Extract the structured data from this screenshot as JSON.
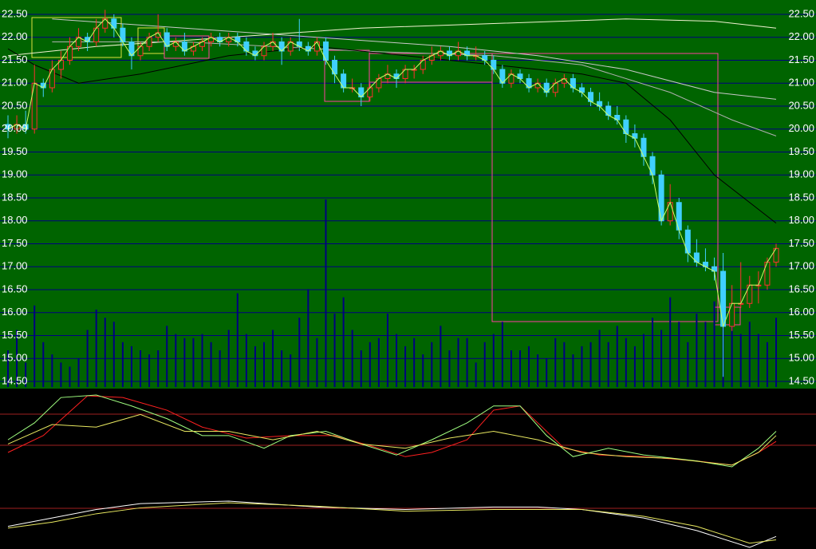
{
  "chart_data": {
    "type": "candlestick",
    "ylim": [
      14.5,
      22.5
    ],
    "yticks": [
      {
        "value": 22.5,
        "label": "22.50"
      },
      {
        "value": 22,
        "label": "22.00"
      },
      {
        "value": 21.5,
        "label": "21.50"
      },
      {
        "value": 21,
        "label": "21.00"
      },
      {
        "value": 20.5,
        "label": "20.50"
      },
      {
        "value": 20,
        "label": "20.00"
      },
      {
        "value": 19.5,
        "label": "19.50"
      },
      {
        "value": 19,
        "label": "19.00"
      },
      {
        "value": 18.5,
        "label": "18.50"
      },
      {
        "value": 18,
        "label": "18.00"
      },
      {
        "value": 17.5,
        "label": "17.50"
      },
      {
        "value": 17,
        "label": "17.00"
      },
      {
        "value": 16.5,
        "label": "16.50"
      },
      {
        "value": 16,
        "label": "16.00"
      },
      {
        "value": 15.5,
        "label": "15.50"
      },
      {
        "value": 15,
        "label": "15.00"
      },
      {
        "value": 14.5,
        "label": "14.50"
      }
    ],
    "grid": true,
    "up_color": "#ff3030",
    "down_color": "#40d0ff",
    "close_line_color": "#ccff66",
    "volume_color": "#000080",
    "candles": [
      [
        20.1,
        20.3,
        19.8,
        20.0
      ],
      [
        20.0,
        20.3,
        19.9,
        20.1
      ],
      [
        20.1,
        20.4,
        19.9,
        20.0
      ],
      [
        20.0,
        21.4,
        19.9,
        21.0
      ],
      [
        21.0,
        21.1,
        20.7,
        20.9
      ],
      [
        20.9,
        21.5,
        20.8,
        21.3
      ],
      [
        21.3,
        21.7,
        21.1,
        21.5
      ],
      [
        21.5,
        22.0,
        21.4,
        21.8
      ],
      [
        21.8,
        22.2,
        21.7,
        22.0
      ],
      [
        22.0,
        22.1,
        21.7,
        21.9
      ],
      [
        21.9,
        22.4,
        21.8,
        22.2
      ],
      [
        22.2,
        22.6,
        22.1,
        22.4
      ],
      [
        22.4,
        22.5,
        22.0,
        22.2
      ],
      [
        22.2,
        22.3,
        21.8,
        21.9
      ],
      [
        21.9,
        22.0,
        21.3,
        21.6
      ],
      [
        21.6,
        21.9,
        21.5,
        21.8
      ],
      [
        21.8,
        22.1,
        21.7,
        22.0
      ],
      [
        22.0,
        22.5,
        21.9,
        22.1
      ],
      [
        22.1,
        22.2,
        21.7,
        21.8
      ],
      [
        21.8,
        22.0,
        21.7,
        21.9
      ],
      [
        21.9,
        22.1,
        21.6,
        21.7
      ],
      [
        21.7,
        21.9,
        21.6,
        21.8
      ],
      [
        21.8,
        22.0,
        21.7,
        21.9
      ],
      [
        21.9,
        22.1,
        21.8,
        22.0
      ],
      [
        22.0,
        22.1,
        21.8,
        21.9
      ],
      [
        21.9,
        22.1,
        21.8,
        22.0
      ],
      [
        22.0,
        22.1,
        21.8,
        21.9
      ],
      [
        21.9,
        22.0,
        21.6,
        21.7
      ],
      [
        21.7,
        21.8,
        21.5,
        21.6
      ],
      [
        21.6,
        21.9,
        21.5,
        21.8
      ],
      [
        21.8,
        22.1,
        21.7,
        21.9
      ],
      [
        21.9,
        22.0,
        21.4,
        21.7
      ],
      [
        21.7,
        22.0,
        21.6,
        21.9
      ],
      [
        21.9,
        22.4,
        21.7,
        21.8
      ],
      [
        21.8,
        21.9,
        21.6,
        21.7
      ],
      [
        21.7,
        22.0,
        21.6,
        21.9
      ],
      [
        21.9,
        22.0,
        21.4,
        21.5
      ],
      [
        21.5,
        21.6,
        21.0,
        21.2
      ],
      [
        21.2,
        21.3,
        20.8,
        20.9
      ],
      [
        20.9,
        21.1,
        20.8,
        20.9
      ],
      [
        20.9,
        21.0,
        20.5,
        20.7
      ],
      [
        20.7,
        21.0,
        20.6,
        20.9
      ],
      [
        20.9,
        21.2,
        20.8,
        21.1
      ],
      [
        21.1,
        21.4,
        21.0,
        21.2
      ],
      [
        21.2,
        21.3,
        20.9,
        21.1
      ],
      [
        21.1,
        21.4,
        21.0,
        21.3
      ],
      [
        21.3,
        21.4,
        21.1,
        21.3
      ],
      [
        21.3,
        21.6,
        21.2,
        21.5
      ],
      [
        21.5,
        21.8,
        21.4,
        21.6
      ],
      [
        21.6,
        21.8,
        21.5,
        21.7
      ],
      [
        21.7,
        21.8,
        21.5,
        21.6
      ],
      [
        21.6,
        21.9,
        21.5,
        21.7
      ],
      [
        21.7,
        21.8,
        21.5,
        21.6
      ],
      [
        21.6,
        21.8,
        21.5,
        21.6
      ],
      [
        21.6,
        21.7,
        21.4,
        21.5
      ],
      [
        21.5,
        21.6,
        21.2,
        21.3
      ],
      [
        21.3,
        21.4,
        20.9,
        21.0
      ],
      [
        21.0,
        21.3,
        20.9,
        21.2
      ],
      [
        21.2,
        21.3,
        21.0,
        21.1
      ],
      [
        21.1,
        21.2,
        20.8,
        20.9
      ],
      [
        20.9,
        21.1,
        20.8,
        21.0
      ],
      [
        21.0,
        21.1,
        20.7,
        20.8
      ],
      [
        20.8,
        21.1,
        20.7,
        21.0
      ],
      [
        21.0,
        21.2,
        20.9,
        21.1
      ],
      [
        21.1,
        21.2,
        20.8,
        20.9
      ],
      [
        20.9,
        21.0,
        20.7,
        20.8
      ],
      [
        20.8,
        20.9,
        20.5,
        20.6
      ],
      [
        20.6,
        20.8,
        20.4,
        20.5
      ],
      [
        20.5,
        20.6,
        20.2,
        20.3
      ],
      [
        20.3,
        20.5,
        20.1,
        20.2
      ],
      [
        20.2,
        20.3,
        19.7,
        19.9
      ],
      [
        19.9,
        20.1,
        19.6,
        19.8
      ],
      [
        19.8,
        19.9,
        19.2,
        19.4
      ],
      [
        19.4,
        19.5,
        18.8,
        19.0
      ],
      [
        19.0,
        19.1,
        17.9,
        18.0
      ],
      [
        18.0,
        18.8,
        17.9,
        18.4
      ],
      [
        18.4,
        18.5,
        17.6,
        17.8
      ],
      [
        17.8,
        17.9,
        17.1,
        17.3
      ],
      [
        17.3,
        17.6,
        17.0,
        17.1
      ],
      [
        17.1,
        17.4,
        16.9,
        17.0
      ],
      [
        17.0,
        17.2,
        16.7,
        16.9
      ],
      [
        16.9,
        17.3,
        14.6,
        15.7
      ],
      [
        15.7,
        16.6,
        15.6,
        16.2
      ],
      [
        16.2,
        17.1,
        16.1,
        16.2
      ],
      [
        16.2,
        16.8,
        16.1,
        16.6
      ],
      [
        16.6,
        16.9,
        16.2,
        16.6
      ],
      [
        16.6,
        17.2,
        16.5,
        17.1
      ],
      [
        17.1,
        17.5,
        17.0,
        17.4
      ]
    ],
    "volume": [
      45,
      70,
      30,
      100,
      55,
      40,
      30,
      25,
      35,
      70,
      95,
      85,
      80,
      55,
      50,
      45,
      40,
      45,
      75,
      65,
      60,
      60,
      65,
      55,
      45,
      70,
      115,
      65,
      50,
      55,
      70,
      45,
      40,
      85,
      120,
      60,
      230,
      90,
      110,
      70,
      45,
      55,
      60,
      90,
      65,
      50,
      60,
      40,
      55,
      75,
      45,
      60,
      60,
      30,
      55,
      65,
      80,
      45,
      45,
      50,
      40,
      35,
      60,
      55,
      40,
      50,
      55,
      70,
      55,
      75,
      60,
      50,
      65,
      85,
      70,
      110,
      80,
      55,
      90,
      80,
      105,
      115,
      75,
      65,
      80,
      65,
      55,
      85
    ],
    "moving_averages": [
      {
        "color": "#f0f0d0",
        "x": [
          0,
          10,
          25,
          40,
          55,
          70,
          80,
          87
        ],
        "values": [
          21.6,
          21.8,
          22.0,
          22.2,
          22.3,
          22.4,
          22.35,
          22.2
        ]
      },
      {
        "color": "#c8c8c8",
        "x": [
          5,
          20,
          35,
          50,
          60,
          70,
          80,
          87
        ],
        "values": [
          22.4,
          22.2,
          22.0,
          21.8,
          21.6,
          21.3,
          20.8,
          20.65
        ]
      },
      {
        "color": "#b0b0b0",
        "x": [
          5,
          20,
          40,
          55,
          65,
          75,
          82,
          87
        ],
        "values": [
          21.9,
          21.9,
          21.7,
          21.6,
          21.4,
          20.8,
          20.2,
          19.85
        ]
      },
      {
        "color": "#000000",
        "x": [
          0,
          3,
          8,
          15,
          25,
          35,
          45,
          55,
          65,
          70,
          75,
          80,
          87
        ],
        "values": [
          21.75,
          21.4,
          21.0,
          21.2,
          21.6,
          21.8,
          21.6,
          21.4,
          21.2,
          21.0,
          20.2,
          19.0,
          17.95
        ]
      }
    ],
    "oscillator": [
      {
        "color": "#ff2020",
        "x": [
          0,
          4,
          9,
          13,
          18,
          22,
          27,
          32,
          37,
          42,
          45,
          48,
          52,
          55,
          58,
          60,
          63,
          67,
          72,
          78,
          82,
          85,
          87
        ],
        "values": [
          35,
          55,
          102,
          100,
          85,
          65,
          52,
          55,
          55,
          40,
          30,
          35,
          50,
          85,
          90,
          70,
          40,
          32,
          30,
          25,
          20,
          35,
          48
        ]
      },
      {
        "color": "#a0ff80",
        "x": [
          0,
          3,
          6,
          10,
          14,
          18,
          22,
          25,
          29,
          32,
          36,
          40,
          44,
          48,
          52,
          55,
          58,
          61,
          64,
          68,
          72,
          78,
          82,
          85,
          87
        ],
        "values": [
          50,
          70,
          100,
          103,
          90,
          75,
          55,
          55,
          40,
          55,
          60,
          45,
          32,
          50,
          70,
          90,
          90,
          55,
          30,
          40,
          32,
          25,
          18,
          40,
          60
        ]
      },
      {
        "color": "#e8e860",
        "x": [
          0,
          5,
          10,
          15,
          20,
          25,
          30,
          35,
          40,
          45,
          50,
          55,
          60,
          65,
          70,
          75,
          82,
          85,
          87
        ],
        "values": [
          45,
          68,
          65,
          80,
          60,
          60,
          50,
          60,
          45,
          40,
          52,
          60,
          50,
          35,
          30,
          28,
          20,
          35,
          55
        ]
      }
    ],
    "macd": [
      {
        "color": "#ffffff",
        "x": [
          0,
          5,
          10,
          15,
          25,
          35,
          45,
          55,
          60,
          65,
          72,
          78,
          84,
          87
        ],
        "values": [
          40,
          50,
          60,
          67,
          70,
          63,
          60,
          63,
          63,
          60,
          50,
          35,
          15,
          28
        ]
      },
      {
        "color": "#e8e860",
        "x": [
          0,
          5,
          10,
          15,
          25,
          35,
          45,
          55,
          65,
          72,
          78,
          84,
          87
        ],
        "values": [
          38,
          45,
          55,
          62,
          68,
          64,
          58,
          60,
          60,
          52,
          40,
          20,
          24
        ]
      }
    ]
  }
}
